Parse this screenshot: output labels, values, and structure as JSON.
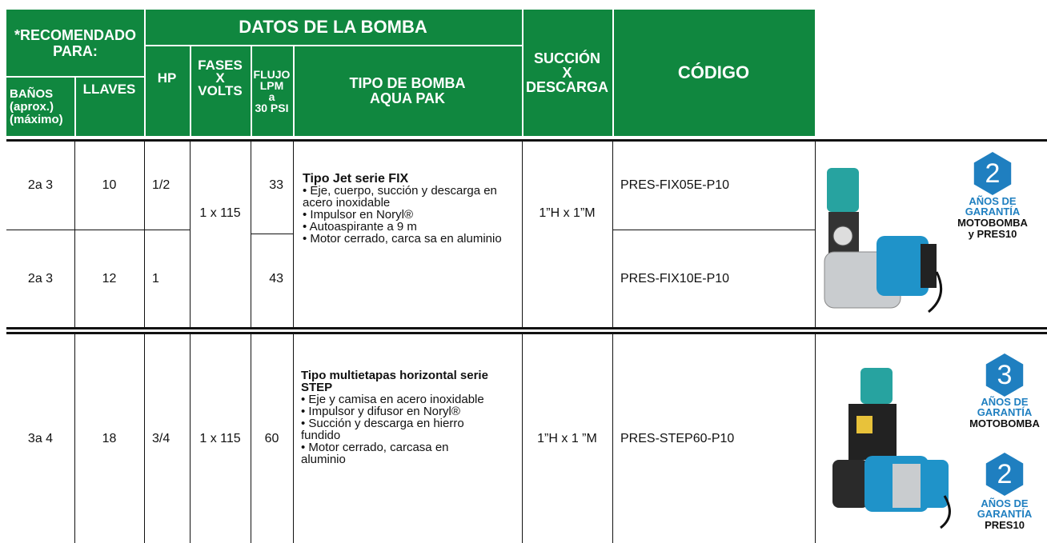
{
  "header": {
    "recommended": "*RECOMENDADO\nPARA:",
    "pump_data": "DATOS DE LA BOMBA",
    "banos": "BAÑOS\n(aprox.)\n(máximo)",
    "llaves": "LLAVES",
    "hp": "HP",
    "fases": "FASES\nX\nVOLTS",
    "flujo": "FLUJO\nLPM\na\n30 PSI",
    "tipo": "TIPO DE BOMBA\nAQUA PAK",
    "succion": "SUCCIÓN\nX\nDESCARGA",
    "codigo": "CÓDIGO"
  },
  "groups": [
    {
      "rows": [
        {
          "banos": "2a 3",
          "llaves": "10",
          "hp": "1/2",
          "flujo": "33",
          "codigo": "PRES-FIX05E-P10"
        },
        {
          "banos": "2a 3",
          "llaves": "12",
          "hp": "1",
          "flujo": "43",
          "codigo": "PRES-FIX10E-P10"
        }
      ],
      "fases": "1 x 115",
      "tipo": {
        "title": "Tipo Jet serie FIX",
        "bullets": [
          "• Eje, cuerpo, succión y descarga en acero inoxidable",
          "• Impulsor en Noryl®",
          "• Autoaspirante a 9 m",
          "• Motor cerrado, carca sa en aluminio"
        ]
      },
      "succion": "1”H x 1”M",
      "warranty": [
        {
          "years": "2",
          "label": "AÑOS DE\nGARANTÍA",
          "covers": "MOTOBOMBA\ny PRES10"
        }
      ]
    },
    {
      "rows": [
        {
          "banos": "3a 4",
          "llaves": "18",
          "hp": "3/4",
          "flujo": "60",
          "codigo": "PRES-STEP60-P10"
        }
      ],
      "fases": "1 x 115",
      "tipo": {
        "title": "Tipo multietapas horizontal serie STEP",
        "bullets": [
          "• Eje y camisa en acero inoxidable",
          "• Impulsor y difusor en Noryl®",
          "• Succión y descarga en hierro fundido",
          "• Motor cerrado, carcasa en aluminio"
        ]
      },
      "succion": "1”H x 1 ”M",
      "warranty": [
        {
          "years": "3",
          "label": "AÑOS DE\nGARANTÍA",
          "covers": "MOTOBOMBA"
        },
        {
          "years": "2",
          "label": "AÑOS DE\nGARANTÍA",
          "covers": "PRES10"
        }
      ]
    }
  ]
}
